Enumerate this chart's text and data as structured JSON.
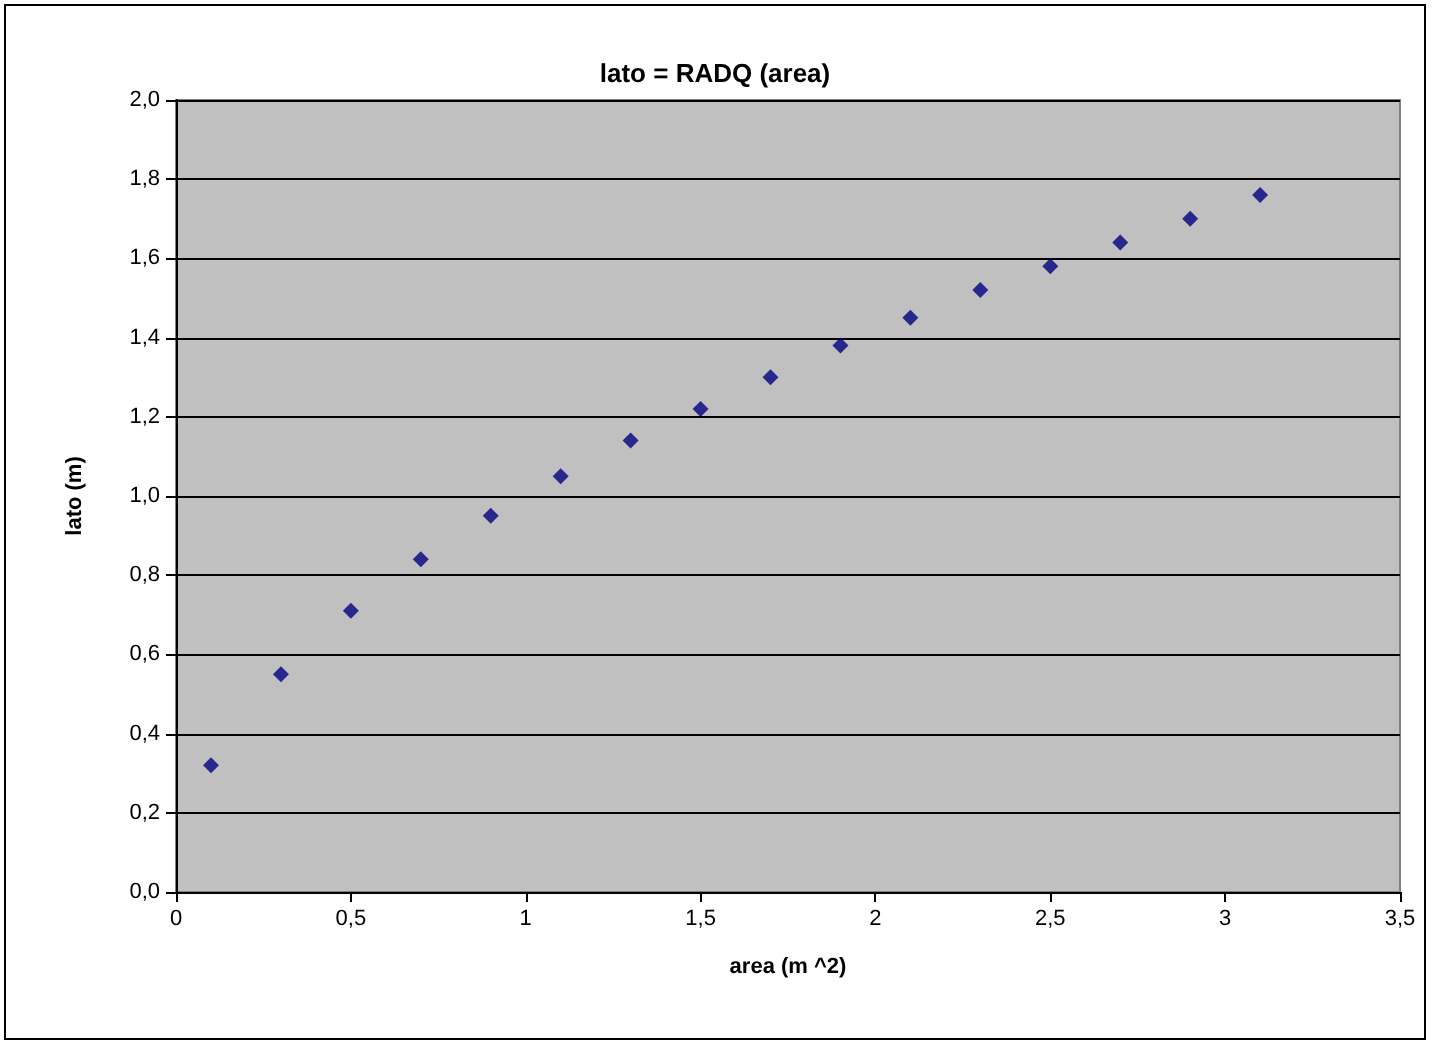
{
  "chart_data": {
    "type": "scatter",
    "title": "lato = RADQ (area)",
    "xlabel": "area (m ^2)",
    "ylabel": "lato (m)",
    "x": [
      0.1,
      0.3,
      0.5,
      0.7,
      0.9,
      1.1,
      1.3,
      1.5,
      1.7,
      1.9,
      2.1,
      2.3,
      2.5,
      2.7,
      2.9,
      3.1
    ],
    "series": [
      {
        "color": "#000080",
        "values": [
          0.32,
          0.55,
          0.71,
          0.84,
          0.95,
          1.05,
          1.14,
          1.22,
          1.3,
          1.38,
          1.45,
          1.52,
          1.58,
          1.64,
          1.7,
          1.76
        ]
      }
    ],
    "xlim": [
      0,
      3.5
    ],
    "xticks": [
      0,
      {
        "value": 0.5,
        "label": "0,5"
      },
      1,
      {
        "value": 1.5,
        "label": "1,5"
      },
      2,
      {
        "value": 2.5,
        "label": "2,5"
      },
      3,
      {
        "value": 3.5,
        "label": "3,5"
      }
    ],
    "ylim": [
      0,
      2
    ],
    "yticks": [
      {
        "value": 0,
        "label": "0,0"
      },
      {
        "value": 0.2,
        "label": "0,2"
      },
      {
        "value": 0.4,
        "label": "0,4"
      },
      {
        "value": 0.6,
        "label": "0,6"
      },
      {
        "value": 0.8,
        "label": "0,8"
      },
      {
        "value": 1,
        "label": "1,0"
      },
      {
        "value": 1.2,
        "label": "1,2"
      },
      {
        "value": 1.4,
        "label": "1,4"
      },
      {
        "value": 1.6,
        "label": "1,6"
      },
      {
        "value": 1.8,
        "label": "1,8"
      },
      {
        "value": 2,
        "label": "2,0"
      }
    ],
    "grid": "y",
    "marker": "diamond"
  }
}
